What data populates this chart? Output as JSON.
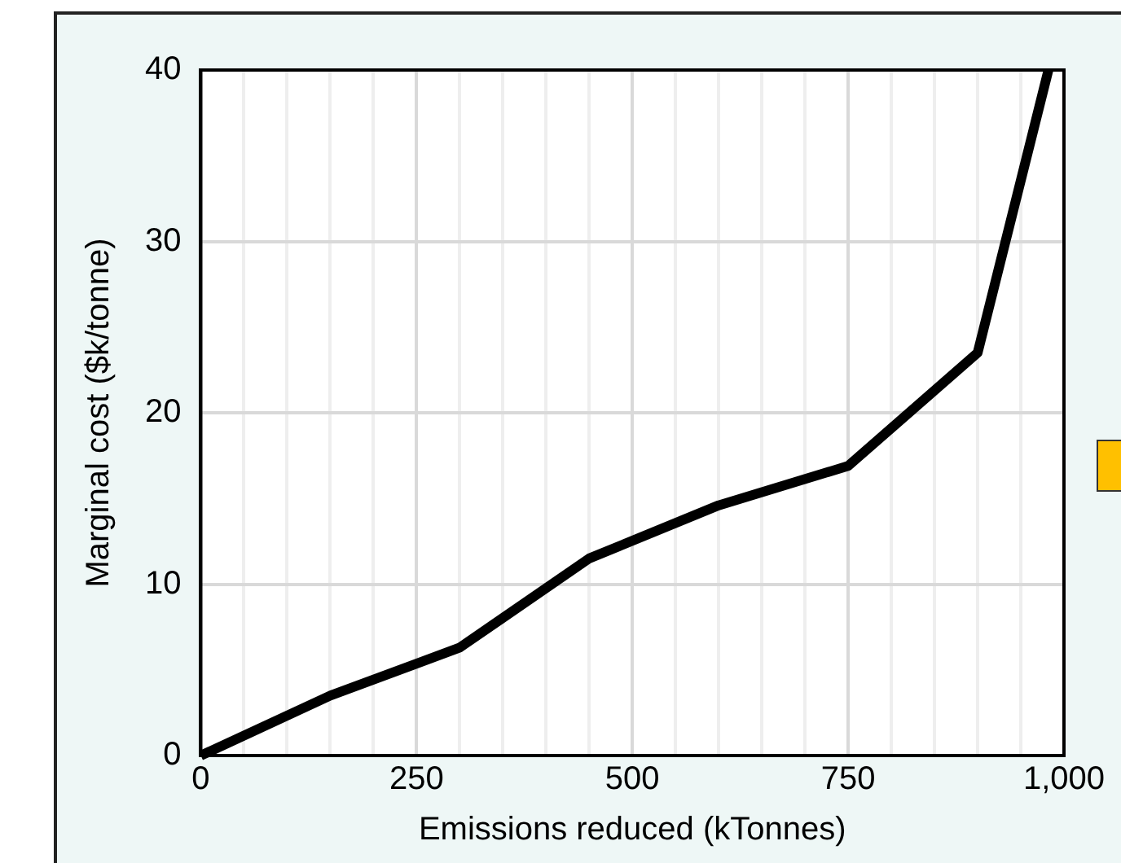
{
  "chart_data": {
    "type": "line",
    "xlabel": "Emissions reduced (kTonnes)",
    "ylabel": "Marginal cost ($k/tonne)",
    "x": [
      0,
      150,
      300,
      450,
      600,
      750,
      900,
      982
    ],
    "series": [
      {
        "color": "#000000",
        "values": [
          0,
          3.5,
          6.3,
          11.5,
          14.6,
          16.9,
          23.5,
          40
        ]
      }
    ],
    "xlim": [
      0,
      1000
    ],
    "xticks": [
      0,
      250,
      500,
      750,
      {
        "value": 1000,
        "label": "1,000"
      }
    ],
    "ylim": [
      0,
      40
    ],
    "yticks": [
      0,
      10,
      20,
      30,
      40
    ],
    "grid": true,
    "marker": "none",
    "line_style": "solid"
  }
}
